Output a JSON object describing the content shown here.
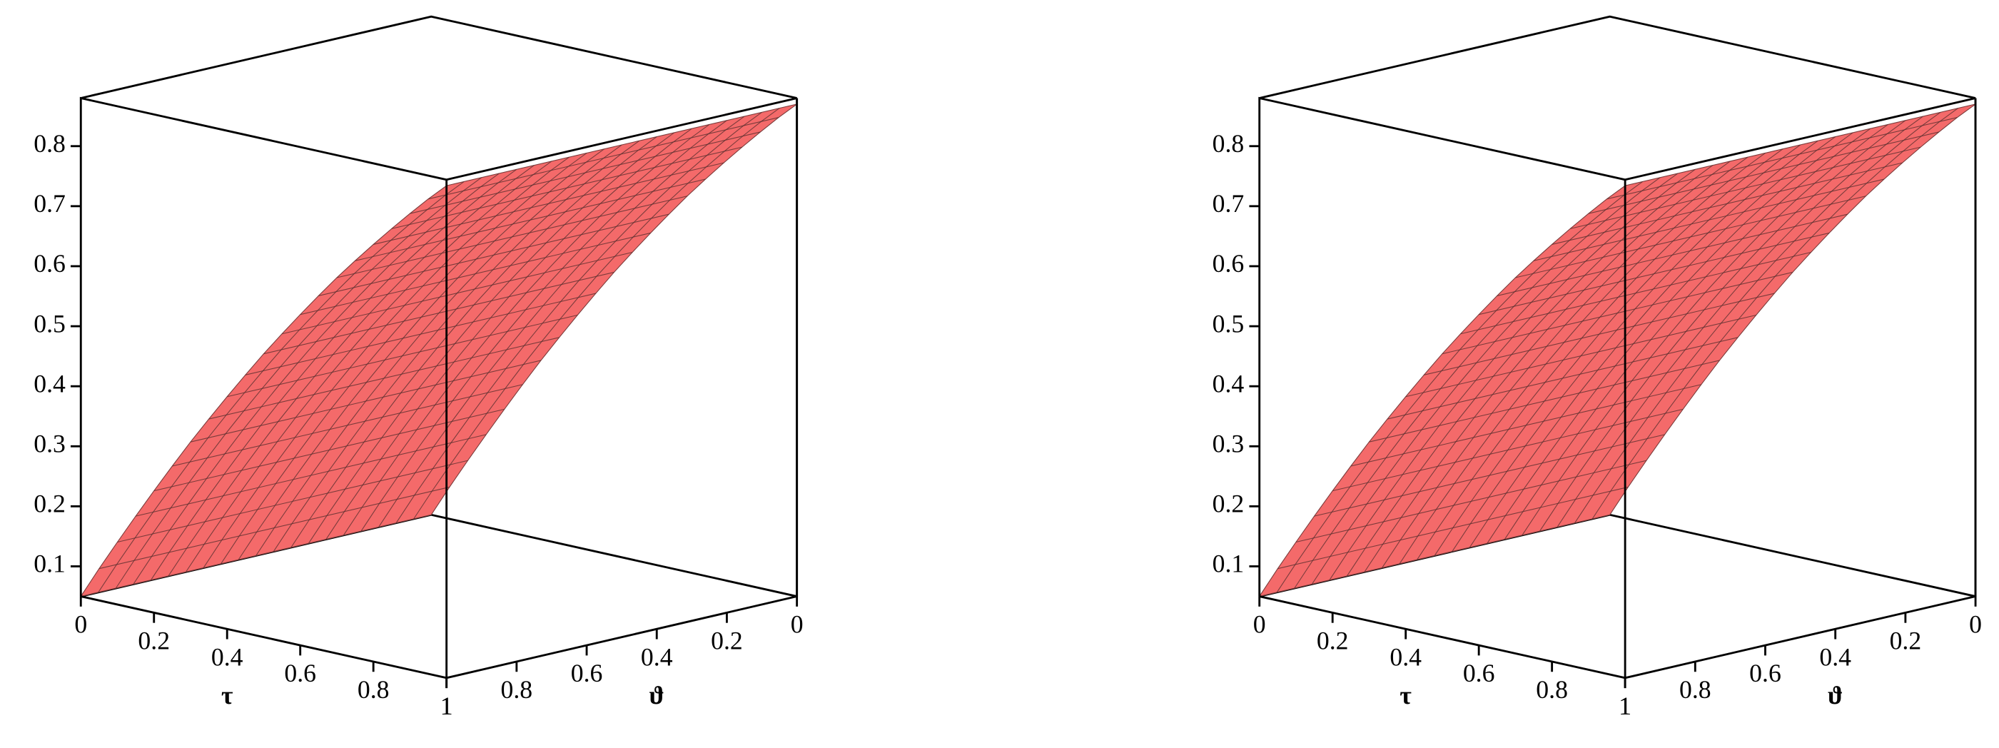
{
  "chart_data": [
    {
      "type": "surface",
      "x_label": "τ",
      "y_label": "ϑ",
      "color": "#f46a6a",
      "mesh_color": "#5a3030",
      "x": [
        0,
        0.05,
        0.1,
        0.15,
        0.2,
        0.25,
        0.3,
        0.35,
        0.4,
        0.45,
        0.5,
        0.55,
        0.6,
        0.65,
        0.7,
        0.75,
        0.8,
        0.85,
        0.9,
        0.95,
        1
      ],
      "values": [
        0.05,
        0.103,
        0.154,
        0.204,
        0.253,
        0.301,
        0.348,
        0.393,
        0.437,
        0.48,
        0.522,
        0.562,
        0.601,
        0.639,
        0.676,
        0.711,
        0.745,
        0.778,
        0.81,
        0.841,
        0.87
      ],
      "xlim": [
        0,
        1
      ],
      "xticks": [
        0,
        0.2,
        0.4,
        0.6,
        0.8,
        1
      ],
      "ylim": [
        0,
        1
      ],
      "yticks": [
        0,
        0.2,
        0.4,
        0.6,
        0.8,
        1
      ],
      "zlim": [
        0.05,
        0.88
      ],
      "zticks": [
        0.1,
        0.2,
        0.3,
        0.4,
        0.5,
        0.6,
        0.7,
        0.8
      ]
    },
    {
      "type": "surface",
      "x_label": "τ",
      "y_label": "ϑ",
      "color": "#f46a6a",
      "mesh_color": "#5a3030",
      "x": [
        0,
        0.05,
        0.1,
        0.15,
        0.2,
        0.25,
        0.3,
        0.35,
        0.4,
        0.45,
        0.5,
        0.55,
        0.6,
        0.65,
        0.7,
        0.75,
        0.8,
        0.85,
        0.9,
        0.95,
        1
      ],
      "values": [
        0.05,
        0.103,
        0.154,
        0.204,
        0.253,
        0.301,
        0.348,
        0.393,
        0.437,
        0.48,
        0.522,
        0.562,
        0.601,
        0.639,
        0.676,
        0.711,
        0.745,
        0.778,
        0.81,
        0.841,
        0.87
      ],
      "xlim": [
        0,
        1
      ],
      "xticks": [
        0,
        0.2,
        0.4,
        0.6,
        0.8,
        1
      ],
      "ylim": [
        0,
        1
      ],
      "yticks": [
        0,
        0.2,
        0.4,
        0.6,
        0.8,
        1
      ],
      "zlim": [
        0.05,
        0.88
      ],
      "zticks": [
        0.1,
        0.2,
        0.3,
        0.4,
        0.5,
        0.6,
        0.7,
        0.8
      ]
    }
  ]
}
